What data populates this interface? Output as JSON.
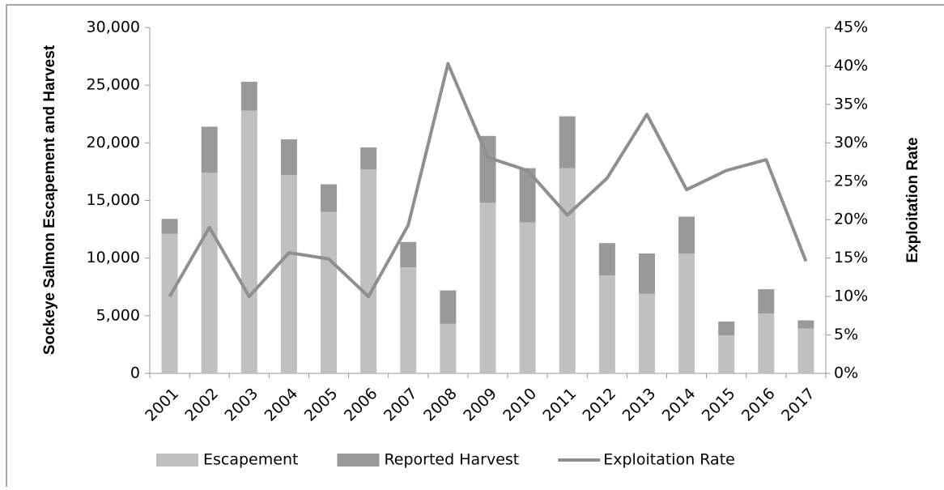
{
  "chart_data": {
    "type": "bar-line",
    "y_label": "Sockeye Salmon Escapement and Harvest",
    "y2_label": "Exploitation Rate",
    "categories": [
      "2001",
      "2002",
      "2003",
      "2004",
      "2005",
      "2006",
      "2007",
      "2008",
      "2009",
      "2010",
      "2011",
      "2012",
      "2013",
      "2014",
      "2015",
      "2016",
      "2017"
    ],
    "series": [
      {
        "name": "Escapement",
        "type": "bar",
        "color": "#c0c0c0",
        "values": [
          12100,
          17400,
          22800,
          17200,
          14000,
          17700,
          9200,
          4300,
          14800,
          13100,
          17800,
          8500,
          6900,
          10400,
          3300,
          5200,
          3900
        ]
      },
      {
        "name": "Reported Harvest",
        "type": "bar",
        "color": "#999999",
        "values": [
          1300,
          4000,
          2500,
          3100,
          2400,
          1900,
          2200,
          2900,
          5800,
          4700,
          4500,
          2800,
          3500,
          3200,
          1200,
          2100,
          700
        ]
      },
      {
        "name": "Exploitation Rate",
        "type": "line",
        "axis": "y2",
        "color": "#8f8f8f",
        "values": [
          10,
          19,
          10,
          15.7,
          14.9,
          10,
          19.3,
          40.3,
          28.1,
          26.4,
          20.6,
          25.4,
          33.7,
          23.9,
          26.4,
          27.8,
          14.6
        ]
      }
    ],
    "ylim": [
      0,
      30000
    ],
    "yticks": [
      0,
      {
        "value": 5000,
        "label": "5,000"
      },
      {
        "value": 10000,
        "label": "10,000"
      },
      {
        "value": 15000,
        "label": "15,000"
      },
      {
        "value": 20000,
        "label": "20,000"
      },
      {
        "value": 25000,
        "label": "25,000"
      },
      {
        "value": 30000,
        "label": "30,000"
      }
    ],
    "y2lim": [
      0,
      45
    ],
    "y2ticks": [
      {
        "value": 0,
        "label": "0%"
      },
      {
        "value": 5,
        "label": "5%"
      },
      {
        "value": 10,
        "label": "10%"
      },
      {
        "value": 15,
        "label": "15%"
      },
      {
        "value": 20,
        "label": "20%"
      },
      {
        "value": 25,
        "label": "25%"
      },
      {
        "value": 30,
        "label": "30%"
      },
      {
        "value": 35,
        "label": "35%"
      },
      {
        "value": 40,
        "label": "40%"
      },
      {
        "value": 45,
        "label": "45%"
      }
    ],
    "grid": false,
    "legend": "bottom"
  }
}
